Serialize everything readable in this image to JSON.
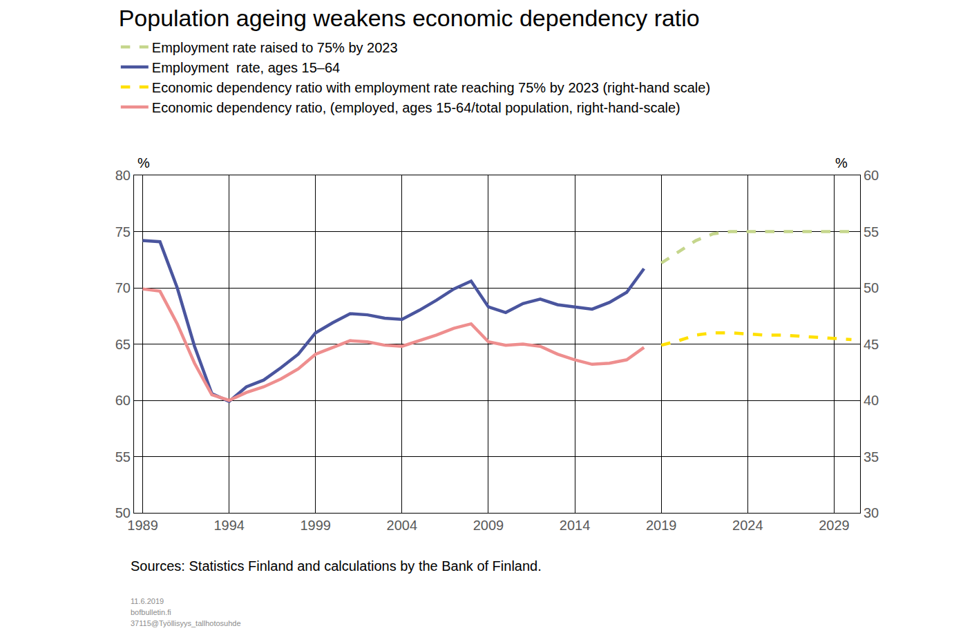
{
  "chart_data": {
    "type": "line",
    "title": "Population ageing weakens economic dependency ratio",
    "y_label": "%",
    "y2_label": "%",
    "source": "Sources: Statistics Finland and calculations by the Bank of Finland.",
    "footnotes": [
      "11.6.2019",
      "bofbulletin.fi",
      "37115@Työllisyys_tallhotosuhde"
    ],
    "x": [
      1989,
      1990,
      1991,
      1992,
      1993,
      1994,
      1995,
      1996,
      1997,
      1998,
      1999,
      2000,
      2001,
      2002,
      2003,
      2004,
      2005,
      2006,
      2007,
      2008,
      2009,
      2010,
      2011,
      2012,
      2013,
      2014,
      2015,
      2016,
      2017,
      2018,
      2019,
      2020,
      2021,
      2022,
      2023,
      2024,
      2025,
      2026,
      2027,
      2028,
      2029,
      2030
    ],
    "xlim": [
      1988.5,
      2030.5
    ],
    "xticks": [
      1989,
      1994,
      1999,
      2004,
      2009,
      2014,
      2019,
      2024,
      2029
    ],
    "ylim": [
      50,
      80
    ],
    "yticks": [
      50,
      55,
      60,
      65,
      70,
      75,
      80
    ],
    "y2lim": [
      30,
      60
    ],
    "y2ticks": [
      30,
      35,
      40,
      45,
      50,
      55,
      60
    ],
    "grid": true,
    "legend": "top left",
    "series": [
      {
        "name": "Employment rate raised to 75% by 2023",
        "color": "#c5d68c",
        "line_style": "dashed",
        "values": [
          null,
          null,
          null,
          null,
          null,
          null,
          null,
          null,
          null,
          null,
          null,
          null,
          null,
          null,
          null,
          null,
          null,
          null,
          null,
          null,
          null,
          null,
          null,
          null,
          null,
          null,
          null,
          null,
          null,
          null,
          72.2,
          73.2,
          74.2,
          74.8,
          75.0,
          75.0,
          75.0,
          75.0,
          75.0,
          75.0,
          75.0,
          75.0
        ]
      },
      {
        "name": "Employment  rate, ages 15–64",
        "color": "#4a559e",
        "line_style": "solid",
        "values": [
          74.2,
          74.1,
          70.0,
          64.8,
          60.6,
          59.9,
          61.2,
          61.8,
          62.9,
          64.1,
          66.0,
          66.9,
          67.7,
          67.6,
          67.3,
          67.2,
          68.0,
          68.9,
          69.9,
          70.6,
          68.3,
          67.8,
          68.6,
          69.0,
          68.5,
          68.3,
          68.1,
          68.7,
          69.6,
          71.7,
          null,
          null,
          null,
          null,
          null,
          null,
          null,
          null,
          null,
          null,
          null,
          null
        ]
      },
      {
        "name": "Economic dependency ratio with employment rate reaching 75% by 2023 (right-hand scale)",
        "color": "#ffe000",
        "line_style": "dashed",
        "axis": "y2",
        "values": [
          null,
          null,
          null,
          null,
          null,
          null,
          null,
          null,
          null,
          null,
          null,
          null,
          null,
          null,
          null,
          null,
          null,
          null,
          null,
          null,
          null,
          null,
          null,
          null,
          null,
          null,
          null,
          null,
          null,
          null,
          44.9,
          45.3,
          45.8,
          46.0,
          46.0,
          45.9,
          45.8,
          45.8,
          45.7,
          45.6,
          45.5,
          45.4
        ]
      },
      {
        "name": "Economic dependency ratio, (employed, ages 15-64/total population, right-hand-scale)",
        "color": "#ee8e8e",
        "line_style": "solid",
        "axis": "y2",
        "values": [
          49.9,
          49.7,
          46.8,
          43.3,
          40.5,
          40.0,
          40.7,
          41.2,
          41.9,
          42.8,
          44.1,
          44.7,
          45.3,
          45.2,
          44.9,
          44.8,
          45.3,
          45.8,
          46.4,
          46.8,
          45.2,
          44.9,
          45.0,
          44.8,
          44.1,
          43.6,
          43.2,
          43.3,
          43.6,
          44.7,
          null,
          null,
          null,
          null,
          null,
          null,
          null,
          null,
          null,
          null,
          null,
          null
        ]
      }
    ]
  }
}
